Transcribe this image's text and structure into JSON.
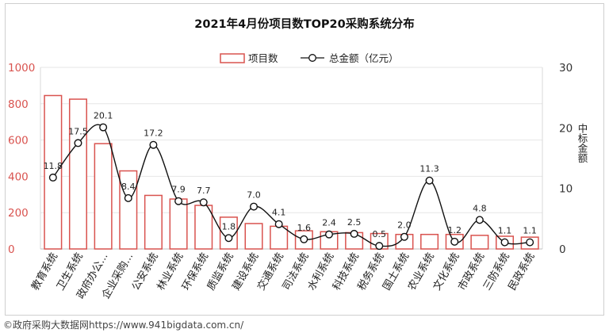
{
  "source_note": "©政府采购大数据网https://www.941bigdata.com.cn/",
  "chart_data": {
    "type": "bar",
    "title": "2021年4月份项目数TOP20采购系统分布",
    "categories": [
      "教育系统",
      "卫生系统",
      "政府办公...",
      "企业采购...",
      "公安系统",
      "林业系统",
      "环保系统",
      "质监系统",
      "建设系统",
      "交通系统",
      "司法系统",
      "水利系统",
      "科技系统",
      "税务系统",
      "国土系统",
      "农业系统",
      "文化系统",
      "市政系统",
      "三防系统",
      "民政系统"
    ],
    "series": [
      {
        "name": "项目数",
        "type": "bar",
        "axis": "left",
        "values": [
          845,
          825,
          580,
          430,
          295,
          275,
          240,
          175,
          140,
          125,
          100,
          95,
          90,
          85,
          80,
          80,
          80,
          75,
          70,
          65
        ]
      },
      {
        "name": "总金额（亿元）",
        "type": "line",
        "axis": "right",
        "values": [
          11.8,
          17.5,
          20.1,
          8.4,
          17.2,
          7.9,
          7.7,
          1.8,
          7.0,
          4.1,
          1.6,
          2.4,
          2.5,
          0.5,
          2.0,
          11.3,
          1.2,
          4.8,
          1.1,
          1.1
        ],
        "labels": [
          "11.8",
          "17.5",
          "20.1",
          "8.4",
          "17.2",
          "7.9",
          "7.7",
          "1.8",
          "7.0",
          "4.1",
          "1.6",
          "2.4",
          "2.5",
          "0.5",
          "2.0",
          "11.3",
          "1.2",
          "4.8",
          "1.1",
          "1.1"
        ]
      }
    ],
    "y_left": {
      "min": 0,
      "max": 1000,
      "ticks": [
        "0",
        "200",
        "400",
        "600",
        "800",
        "1000"
      ],
      "color": "#d9534f"
    },
    "y_right": {
      "min": 0,
      "max": 30,
      "ticks": [
        "0",
        "10",
        "20",
        "30"
      ],
      "label": "中标金额"
    },
    "legend_position": "top-center",
    "colors": {
      "bar_stroke": "#d9534f",
      "bar_fill": "#ffffff",
      "line": "#111111",
      "grid": "#e6e6e6"
    }
  }
}
